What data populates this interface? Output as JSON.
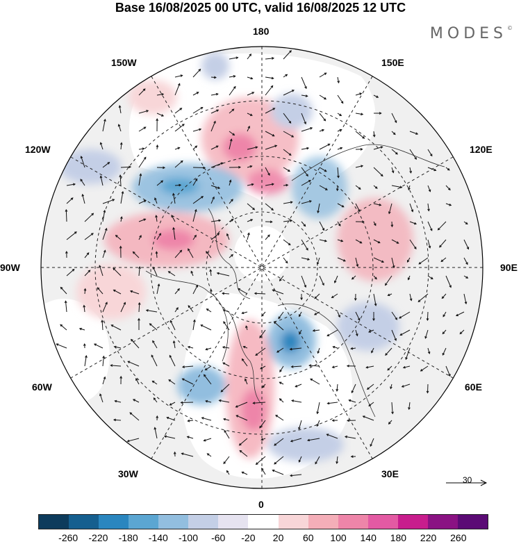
{
  "title": "Base 16/08/2025 00 UTC, valid 16/08/2025 12 UTC",
  "brand": "MODES",
  "brand_mark": "©",
  "longitude_labels": {
    "top": "180",
    "bottom": "0",
    "left": "90W",
    "right": "90E",
    "upper_left_1": "150W",
    "upper_left_2": "120W",
    "upper_right_1": "150E",
    "upper_right_2": "120E",
    "lower_left_1": "60W",
    "lower_left_2": "30W",
    "lower_right_1": "60E",
    "lower_right_2": "30E"
  },
  "reference_vector": "30",
  "colorbar": {
    "colors": [
      "#0d3b5c",
      "#155f8f",
      "#2a86bf",
      "#5ba6d2",
      "#92bedf",
      "#c4cfe6",
      "#e6e3f0",
      "#ffffff",
      "#f8d6d8",
      "#f4aeb8",
      "#ee85a9",
      "#e35aa3",
      "#c81d8d",
      "#8a1283",
      "#5b0b75"
    ],
    "ticks": [
      "-260",
      "-220",
      "-180",
      "-140",
      "-100",
      "-60",
      "-20",
      "20",
      "60",
      "100",
      "140",
      "180",
      "220",
      "260"
    ]
  }
}
